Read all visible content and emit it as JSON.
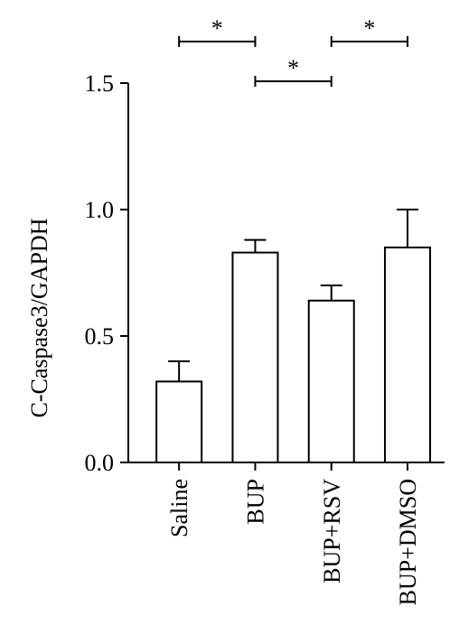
{
  "chart_data": {
    "type": "bar",
    "y_label": "C-Caspase3/GAPDH",
    "categories": [
      "Saline",
      "BUP",
      "BUP+RSV",
      "BUP+DMSO"
    ],
    "values": [
      0.32,
      0.83,
      0.64,
      0.85
    ],
    "errors": [
      0.08,
      0.05,
      0.06,
      0.15
    ],
    "color": "#ffffff",
    "ylim": [
      0,
      1.5
    ],
    "yticks": [
      {
        "value": 0,
        "label": "0.0"
      },
      {
        "value": 0.5,
        "label": "0.5"
      },
      {
        "value": 1,
        "label": "1.0"
      },
      {
        "value": 1.5,
        "label": "1.5"
      }
    ],
    "significance": [
      {
        "from": "Saline",
        "to": "BUP",
        "label": "*"
      },
      {
        "from": "BUP",
        "to": "BUP+RSV",
        "label": "*"
      },
      {
        "from": "BUP+RSV",
        "to": "BUP+DMSO",
        "label": "*"
      }
    ]
  }
}
